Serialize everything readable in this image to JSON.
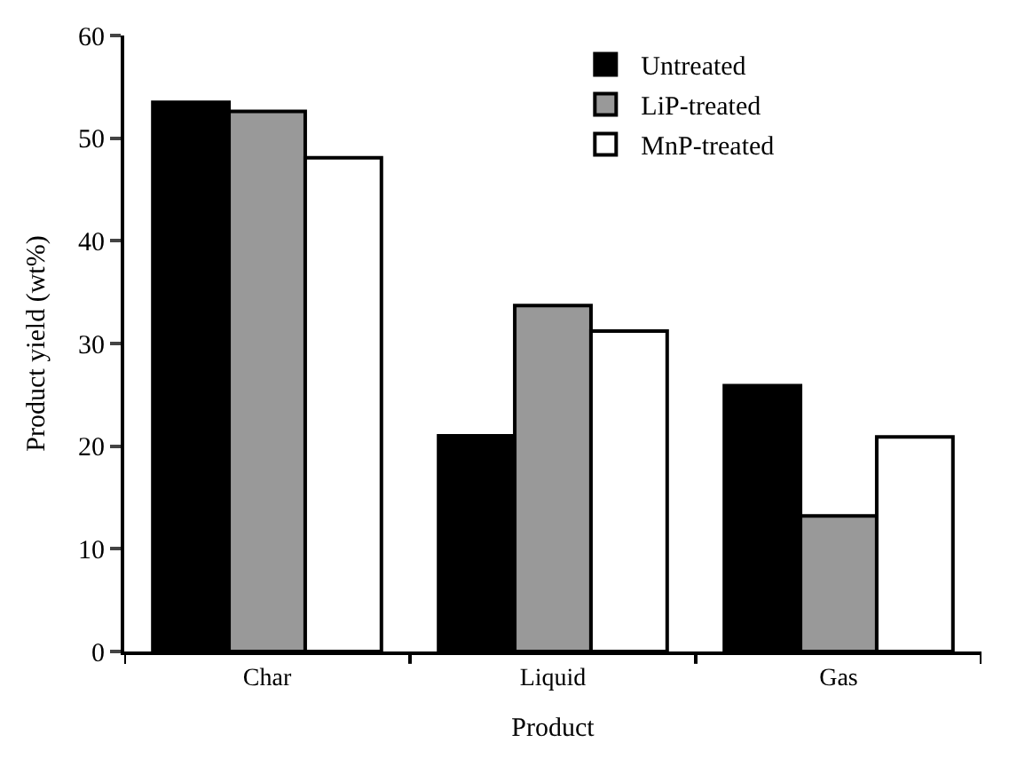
{
  "chart_data": {
    "type": "bar",
    "xlabel": "Product",
    "ylabel": "Product yield (wt%)",
    "categories": [
      "Char",
      "Liquid",
      "Gas"
    ],
    "series": [
      {
        "name": "Untreated",
        "color": "#000000",
        "values": [
          53.5,
          21.0,
          25.9
        ]
      },
      {
        "name": "LiP-treated",
        "color": "#999999",
        "values": [
          52.6,
          33.7,
          13.2
        ]
      },
      {
        "name": "MnP-treated",
        "color": "#ffffff",
        "values": [
          48.1,
          31.2,
          20.9
        ]
      }
    ],
    "ylim": [
      0,
      60
    ],
    "yticks": [
      0,
      10,
      20,
      30,
      40,
      50,
      60
    ],
    "legend": "top right"
  }
}
